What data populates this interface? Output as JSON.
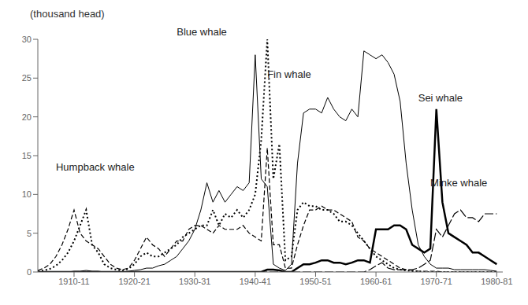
{
  "chart_data": {
    "type": "line",
    "title": "(thousand head)",
    "xlim": [
      1904,
      1981
    ],
    "xticks": [
      {
        "value": 1910,
        "label": "1910-11"
      },
      {
        "value": 1920,
        "label": "1920-21"
      },
      {
        "value": 1930,
        "label": "1930-31"
      },
      {
        "value": 1940,
        "label": "1940-41"
      },
      {
        "value": 1950,
        "label": "1950-51"
      },
      {
        "value": 1960,
        "label": "1960-61"
      },
      {
        "value": 1970,
        "label": "1970-71"
      },
      {
        "value": 1980,
        "label": "1980-81"
      }
    ],
    "ylim": [
      0,
      30
    ],
    "yticks": [
      0,
      5,
      10,
      15,
      20,
      25,
      30
    ],
    "grid": false,
    "annotations": [
      {
        "text": "Blue whale",
        "x": 1927,
        "y": 31.0
      },
      {
        "text": "Fin whale",
        "x": 1942,
        "y": 25.5
      },
      {
        "text": "Humpback whale",
        "x": 1907,
        "y": 13.5
      },
      {
        "text": "Sei whale",
        "x": 1967,
        "y": 22.5
      },
      {
        "text": "Minke whale",
        "x": 1969,
        "y": 11.5
      }
    ],
    "x": [
      1904,
      1905,
      1906,
      1907,
      1908,
      1909,
      1910,
      1911,
      1912,
      1913,
      1914,
      1915,
      1916,
      1917,
      1918,
      1919,
      1920,
      1921,
      1922,
      1923,
      1924,
      1925,
      1926,
      1927,
      1928,
      1929,
      1930,
      1931,
      1932,
      1933,
      1934,
      1935,
      1936,
      1937,
      1938,
      1939,
      1940,
      1941,
      1942,
      1943,
      1944,
      1945,
      1946,
      1947,
      1948,
      1949,
      1950,
      1951,
      1952,
      1953,
      1954,
      1955,
      1956,
      1957,
      1958,
      1959,
      1960,
      1961,
      1962,
      1963,
      1964,
      1965,
      1966,
      1967,
      1968,
      1969,
      1970,
      1971,
      1972,
      1973,
      1974,
      1975,
      1976,
      1977,
      1978,
      1979,
      1980
    ],
    "series": [
      {
        "name": "Fin whale",
        "color": "#000000",
        "line_style": "solid",
        "values": [
          0.0,
          0.0,
          0.0,
          0.0,
          0.0,
          0.0,
          0.1,
          0.1,
          0.2,
          0.1,
          0.1,
          0.0,
          0.0,
          0.0,
          0.0,
          0.1,
          0.2,
          0.3,
          0.5,
          0.5,
          0.8,
          1.0,
          1.5,
          2.0,
          3.0,
          4.0,
          5.5,
          8.0,
          11.5,
          9.0,
          10.5,
          9.0,
          10.0,
          11.0,
          10.5,
          11.5,
          28.0,
          12.0,
          11.0,
          1.0,
          0.5,
          0.2,
          1.0,
          14.0,
          20.5,
          21.0,
          21.0,
          20.5,
          22.5,
          21.0,
          20.0,
          19.5,
          21.0,
          20.0,
          28.5,
          28.0,
          27.5,
          28.0,
          27.0,
          25.5,
          22.0,
          14.0,
          8.0,
          3.5,
          2.0,
          1.0,
          0.5,
          0.5,
          0.5,
          0.3,
          0.3,
          0.3,
          0.3,
          0.3,
          0.3,
          0.2,
          0.1
        ]
      },
      {
        "name": "Blue whale",
        "color": "#000000",
        "line_style": "dotted",
        "values": [
          0.1,
          0.2,
          0.4,
          0.8,
          1.5,
          2.5,
          4.0,
          6.0,
          8.0,
          3.5,
          2.5,
          1.0,
          0.5,
          0.3,
          0.2,
          0.4,
          1.0,
          2.0,
          2.5,
          2.0,
          2.0,
          2.5,
          3.0,
          3.5,
          4.5,
          5.0,
          5.5,
          6.0,
          6.0,
          8.0,
          6.0,
          7.5,
          7.0,
          8.0,
          7.0,
          8.0,
          10.0,
          17.0,
          30.0,
          12.0,
          16.5,
          1.5,
          2.0,
          8.0,
          9.0,
          8.5,
          8.5,
          8.0,
          8.0,
          7.5,
          6.5,
          6.5,
          6.0,
          5.0,
          4.0,
          3.0,
          2.0,
          1.5,
          1.0,
          0.5,
          0.3,
          0.2,
          0.1,
          0.1,
          0.0,
          0.0,
          0.0,
          0.0,
          0.0,
          0.0,
          0.0,
          0.0,
          0.0,
          0.0,
          0.0,
          0.0,
          0.0
        ]
      },
      {
        "name": "Humpback whale",
        "color": "#000000",
        "line_style": "dashed",
        "values": [
          0.2,
          0.5,
          1.0,
          2.0,
          3.5,
          5.5,
          8.0,
          5.0,
          4.0,
          3.5,
          3.0,
          2.0,
          1.0,
          0.5,
          0.3,
          0.5,
          1.5,
          3.0,
          4.5,
          3.5,
          3.0,
          2.0,
          3.0,
          4.0,
          4.0,
          5.5,
          6.0,
          6.0,
          5.5,
          5.0,
          6.0,
          5.5,
          5.5,
          5.5,
          6.0,
          5.0,
          4.5,
          4.0,
          16.0,
          3.5,
          3.5,
          0.5,
          0.5,
          3.5,
          6.0,
          8.0,
          8.0,
          8.5,
          8.0,
          8.0,
          7.5,
          7.0,
          6.5,
          4.5,
          4.0,
          3.0,
          2.5,
          2.0,
          1.5,
          1.0,
          0.5,
          0.3,
          0.2,
          0.1,
          0.1,
          0.1,
          0.1,
          0.0,
          0.0,
          0.0,
          0.0,
          0.0,
          0.0,
          0.0,
          0.0,
          0.0,
          0.0
        ]
      },
      {
        "name": "Sei whale",
        "color": "#000000",
        "line_style": "solid",
        "values": [
          0.0,
          0.0,
          0.0,
          0.0,
          0.0,
          0.0,
          0.0,
          0.0,
          0.0,
          0.0,
          0.0,
          0.0,
          0.0,
          0.0,
          0.0,
          0.0,
          0.0,
          0.0,
          0.0,
          0.0,
          0.0,
          0.0,
          0.0,
          0.0,
          0.0,
          0.0,
          0.0,
          0.0,
          0.0,
          0.0,
          0.0,
          0.0,
          0.0,
          0.0,
          0.0,
          0.0,
          0.0,
          0.0,
          0.3,
          0.3,
          0.2,
          0.0,
          0.0,
          0.5,
          1.0,
          1.0,
          1.2,
          1.5,
          1.5,
          1.2,
          1.2,
          1.0,
          1.2,
          1.5,
          1.5,
          1.2,
          5.5,
          5.5,
          5.5,
          6.0,
          6.0,
          5.5,
          3.5,
          3.0,
          2.5,
          3.0,
          21.0,
          9.0,
          5.0,
          4.5,
          4.0,
          3.5,
          2.5,
          2.5,
          2.0,
          1.5,
          1.0
        ]
      },
      {
        "name": "Minke whale",
        "color": "#000000",
        "line_style": "longdash",
        "values": [
          0.0,
          0.0,
          0.0,
          0.0,
          0.0,
          0.0,
          0.0,
          0.0,
          0.0,
          0.0,
          0.0,
          0.0,
          0.0,
          0.0,
          0.0,
          0.0,
          0.0,
          0.0,
          0.0,
          0.0,
          0.0,
          0.0,
          0.0,
          0.0,
          0.0,
          0.0,
          0.0,
          0.0,
          0.0,
          0.0,
          0.0,
          0.0,
          0.0,
          0.0,
          0.0,
          0.0,
          0.0,
          0.0,
          0.0,
          0.0,
          0.0,
          0.0,
          0.0,
          0.0,
          0.0,
          0.0,
          0.0,
          0.0,
          0.0,
          0.0,
          0.0,
          0.0,
          0.0,
          0.0,
          0.0,
          0.3,
          0.8,
          1.2,
          0.5,
          0.3,
          0.3,
          0.3,
          0.3,
          0.5,
          1.0,
          1.5,
          5.5,
          4.5,
          6.0,
          7.5,
          8.0,
          7.0,
          7.0,
          6.5,
          7.5,
          7.5,
          7.5
        ]
      }
    ]
  }
}
